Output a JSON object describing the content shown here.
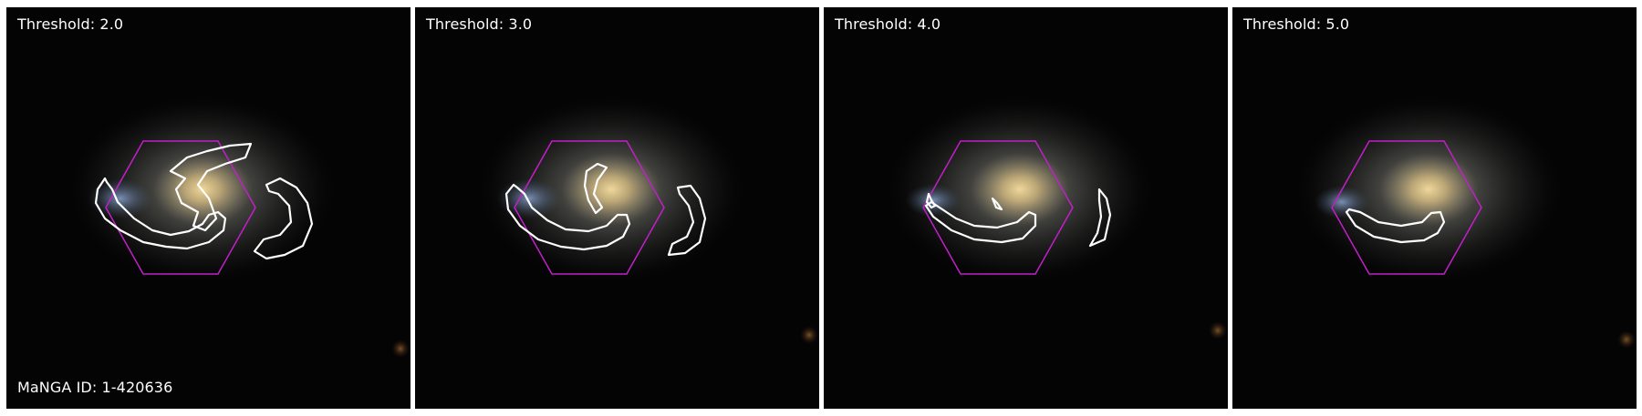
{
  "panels": [
    {
      "threshold_label": "Threshold: 2.0"
    },
    {
      "threshold_label": "Threshold: 3.0"
    },
    {
      "threshold_label": "Threshold: 4.0"
    },
    {
      "threshold_label": "Threshold: 5.0"
    }
  ],
  "manga_id_label": "MaNGA ID: 1-420636",
  "colors": {
    "background": "#050404",
    "galaxy_core": "#d7c08a",
    "galaxy_halo": "#8e8f85",
    "contour": "#ffffff",
    "ifu_hexagon": "#c020c8",
    "blue_clump": "#6b86b0"
  }
}
